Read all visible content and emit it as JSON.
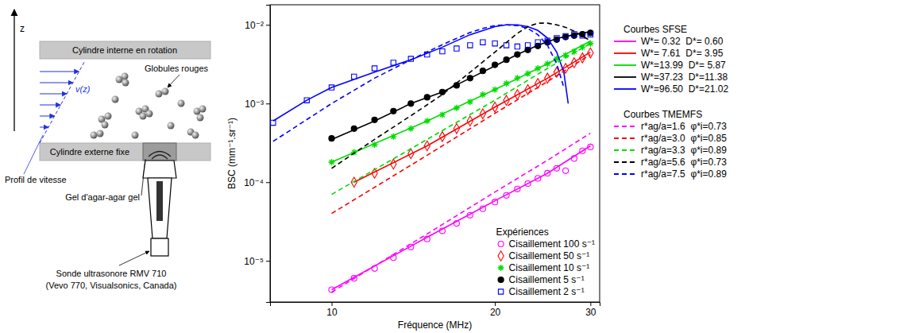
{
  "diagram": {
    "z_label": "z",
    "inner_cylinder": "Cylindre interne en rotation",
    "outer_cylinder": "Cylindre externe fixe",
    "cells": "Globules rouges",
    "velocity": "v(z)",
    "velocity_profile": "Profil de vitesse",
    "gel": "Gel d'agar-agar gel",
    "probe": [
      "Sonde ultrasonore RMV 710",
      "(Vevo 770, Visualsonics, Canada)"
    ]
  },
  "chart_data": {
    "type": "line",
    "log": true,
    "grid": false,
    "xlabel": "Fréquence (MHz)",
    "ylabel": "BSC (mm⁻¹.sr⁻¹)",
    "xlim": [
      7.7,
      31.2
    ],
    "ylim": [
      3e-06,
      0.018
    ],
    "xticks": [
      10,
      20,
      30
    ],
    "yticks": [
      {
        "value": 1e-05,
        "label": "10⁻⁵"
      },
      {
        "value": 0.0001,
        "label": "10⁻⁴"
      },
      {
        "value": 0.001,
        "label": "10⁻³"
      },
      {
        "value": 0.01,
        "label": "10⁻²"
      }
    ],
    "legends": [
      {
        "title": "Expériences",
        "legend": "lower right"
      },
      {
        "title": "Courbes SFSE",
        "legend": "outside right"
      },
      {
        "title": "Courbes TMEMFS",
        "legend": "outside right"
      }
    ],
    "series": [
      {
        "name": "Cisaillement 100 s⁻¹",
        "group": "Expériences",
        "type": "scatter",
        "marker": "circle",
        "color": "#ff00ff",
        "x": [
          10,
          11,
          12,
          13,
          14,
          15,
          16,
          17,
          18,
          19,
          20,
          21,
          22,
          23,
          24,
          25,
          26,
          27,
          28,
          29,
          30
        ],
        "values": [
          4.3e-06,
          6e-06,
          8e-06,
          1.1e-05,
          1.5e-05,
          1.9e-05,
          2.4e-05,
          3e-05,
          3.8e-05,
          4.6e-05,
          5.6e-05,
          6.8e-05,
          8.2e-05,
          9.6e-05,
          0.000112,
          0.00013,
          0.00015,
          0.00014,
          0.0002,
          0.00025,
          0.00028
        ]
      },
      {
        "name": "Cisaillement 50 s⁻¹",
        "group": "Expériences",
        "type": "scatter",
        "marker": "diamond",
        "color": "#ff0000",
        "x": [
          11,
          12,
          13,
          14,
          15,
          16,
          17,
          18,
          19,
          20,
          21,
          22,
          23,
          24,
          25,
          26,
          27,
          28,
          29,
          30
        ],
        "values": [
          0.0001,
          0.00013,
          0.00017,
          0.00023,
          0.00029,
          0.00038,
          0.00048,
          0.0006,
          0.00074,
          0.0009,
          0.0011,
          0.0013,
          0.0015,
          0.0018,
          0.0021,
          0.0025,
          0.0028,
          0.0033,
          0.0038,
          0.0044
        ]
      },
      {
        "name": "Cisaillement 10 s⁻¹",
        "group": "Expériences",
        "type": "scatter",
        "marker": "star",
        "color": "#00dd00",
        "x": [
          10,
          11,
          12,
          13,
          14,
          15,
          16,
          17,
          18,
          19,
          20,
          21,
          22,
          23,
          24,
          25,
          26,
          27,
          28,
          29,
          30
        ],
        "values": [
          0.00018,
          0.00024,
          0.0003,
          0.00038,
          0.00048,
          0.0006,
          0.00072,
          0.00088,
          0.00105,
          0.0013,
          0.0015,
          0.0018,
          0.0021,
          0.0024,
          0.0028,
          0.0032,
          0.0037,
          0.0041,
          0.0046,
          0.0052,
          0.0058
        ]
      },
      {
        "name": "Cisaillement 5 s⁻¹",
        "group": "Expériences",
        "type": "scatter",
        "marker": "dot",
        "color": "#000000",
        "x": [
          10,
          11,
          12,
          13,
          14,
          15,
          16,
          17,
          18,
          19,
          20,
          21,
          22,
          23,
          24,
          25,
          26,
          27,
          28,
          29,
          30
        ],
        "values": [
          0.00036,
          0.00048,
          0.00062,
          0.0008,
          0.001,
          0.0012,
          0.0014,
          0.0017,
          0.0021,
          0.0026,
          0.0031,
          0.0036,
          0.0042,
          0.0048,
          0.0054,
          0.006,
          0.0065,
          0.007,
          0.0073,
          0.0076,
          0.0079
        ]
      },
      {
        "name": "Cisaillement 2 s⁻¹",
        "group": "Expériences",
        "type": "scatter",
        "marker": "square",
        "color": "#0000ff",
        "x": [
          7.8,
          9,
          10,
          11,
          12,
          13,
          14,
          15,
          16,
          17,
          18,
          19,
          20,
          21,
          22,
          23,
          24,
          25,
          26,
          27,
          28,
          29,
          30
        ],
        "values": [
          0.00057,
          0.0011,
          0.0016,
          0.0022,
          0.0028,
          0.0033,
          0.0037,
          0.0042,
          0.0046,
          0.005,
          0.0055,
          0.006,
          0.0058,
          0.0055,
          0.0053,
          0.0055,
          0.006,
          0.0063,
          0.0068,
          0.0072,
          0.0076,
          0.0073,
          0.0075
        ]
      },
      {
        "name": "W*= 0.32  D*= 0.60",
        "group": "Courbes SFSE",
        "type": "line",
        "line_style": "solid",
        "color": "#ff00ff",
        "x": [
          10,
          15,
          20,
          25,
          30
        ],
        "values": [
          4.3e-06,
          2e-05,
          5.8e-05,
          0.00013,
          0.00029
        ]
      },
      {
        "name": "W*= 7.61  D*= 3.95",
        "group": "Courbes SFSE",
        "type": "line",
        "line_style": "solid",
        "color": "#ff0000",
        "x": [
          11,
          15,
          20,
          25,
          30
        ],
        "values": [
          0.0001,
          0.00029,
          0.0009,
          0.0021,
          0.0045
        ]
      },
      {
        "name": "W*=13.99  D*= 5.87",
        "group": "Courbes SFSE",
        "type": "line",
        "line_style": "solid",
        "color": "#00dd00",
        "x": [
          10,
          15,
          20,
          25,
          30
        ],
        "values": [
          0.00018,
          0.0006,
          0.0015,
          0.0032,
          0.0062
        ]
      },
      {
        "name": "W*=37.23  D*=11.38",
        "group": "Courbes SFSE",
        "type": "line",
        "line_style": "solid",
        "color": "#000000",
        "x": [
          10,
          12,
          14,
          16,
          18,
          20,
          22,
          24,
          26,
          28,
          30
        ],
        "values": [
          0.00035,
          0.0006,
          0.001,
          0.0014,
          0.0021,
          0.003,
          0.0042,
          0.0055,
          0.0067,
          0.0075,
          0.0082
        ]
      },
      {
        "name": "W*=96.50  D*=21.02",
        "group": "Courbes SFSE",
        "type": "line",
        "line_style": "solid",
        "color": "#0000ff",
        "x": [
          7.8,
          9,
          10,
          12,
          14,
          16,
          18,
          20,
          21,
          22,
          23,
          24,
          25,
          26,
          26.8,
          27.3
        ],
        "values": [
          0.0006,
          0.0011,
          0.0016,
          0.0025,
          0.0036,
          0.0052,
          0.0075,
          0.0095,
          0.01,
          0.01,
          0.0095,
          0.0085,
          0.0068,
          0.0045,
          0.0025,
          0.001
        ]
      },
      {
        "name": "r*ag/a=1.6  φ*i=0.73",
        "group": "Courbes TMEMFS",
        "type": "line",
        "line_style": "dashed",
        "color": "#ff00ff",
        "x": [
          10,
          15,
          20,
          25,
          30
        ],
        "values": [
          4e-06,
          2.2e-05,
          7.5e-05,
          0.00019,
          0.00042
        ]
      },
      {
        "name": "r*ag/a=3.0  φ*i=0.85",
        "group": "Courbes TMEMFS",
        "type": "line",
        "line_style": "dashed",
        "color": "#ff0000",
        "x": [
          10,
          15,
          20,
          25,
          30
        ],
        "values": [
          4e-05,
          0.00022,
          0.00075,
          0.0019,
          0.0042
        ]
      },
      {
        "name": "r*ag/a=3.3  φ*i=0.89",
        "group": "Courbes TMEMFS",
        "type": "line",
        "line_style": "dashed",
        "color": "#00dd00",
        "x": [
          10,
          15,
          20,
          25,
          30
        ],
        "values": [
          7e-05,
          0.00035,
          0.0011,
          0.0028,
          0.0058
        ]
      },
      {
        "name": "r*ag/a=5.6  φ*i=0.73",
        "group": "Courbes TMEMFS",
        "type": "line",
        "line_style": "dashed",
        "color": "#000000",
        "x": [
          10,
          12,
          14,
          16,
          18,
          20,
          22,
          23,
          24,
          25,
          26,
          27,
          28,
          29,
          30
        ],
        "values": [
          0.00015,
          0.00035,
          0.0007,
          0.0013,
          0.0025,
          0.0045,
          0.0078,
          0.0095,
          0.0105,
          0.0105,
          0.01,
          0.0093,
          0.0083,
          0.0072,
          0.0063
        ]
      },
      {
        "name": "r*ag/a=7.5  φ*i=0.89",
        "group": "Courbes TMEMFS",
        "type": "line",
        "line_style": "dashed",
        "color": "#0000ff",
        "x": [
          7.8,
          10,
          12,
          14,
          16,
          18,
          19,
          20,
          21,
          22,
          23,
          24,
          25,
          26,
          26.8
        ],
        "values": [
          0.00033,
          0.001,
          0.0021,
          0.0036,
          0.0056,
          0.008,
          0.009,
          0.0098,
          0.01,
          0.0098,
          0.009,
          0.0075,
          0.0055,
          0.0032,
          0.0016
        ]
      }
    ]
  }
}
